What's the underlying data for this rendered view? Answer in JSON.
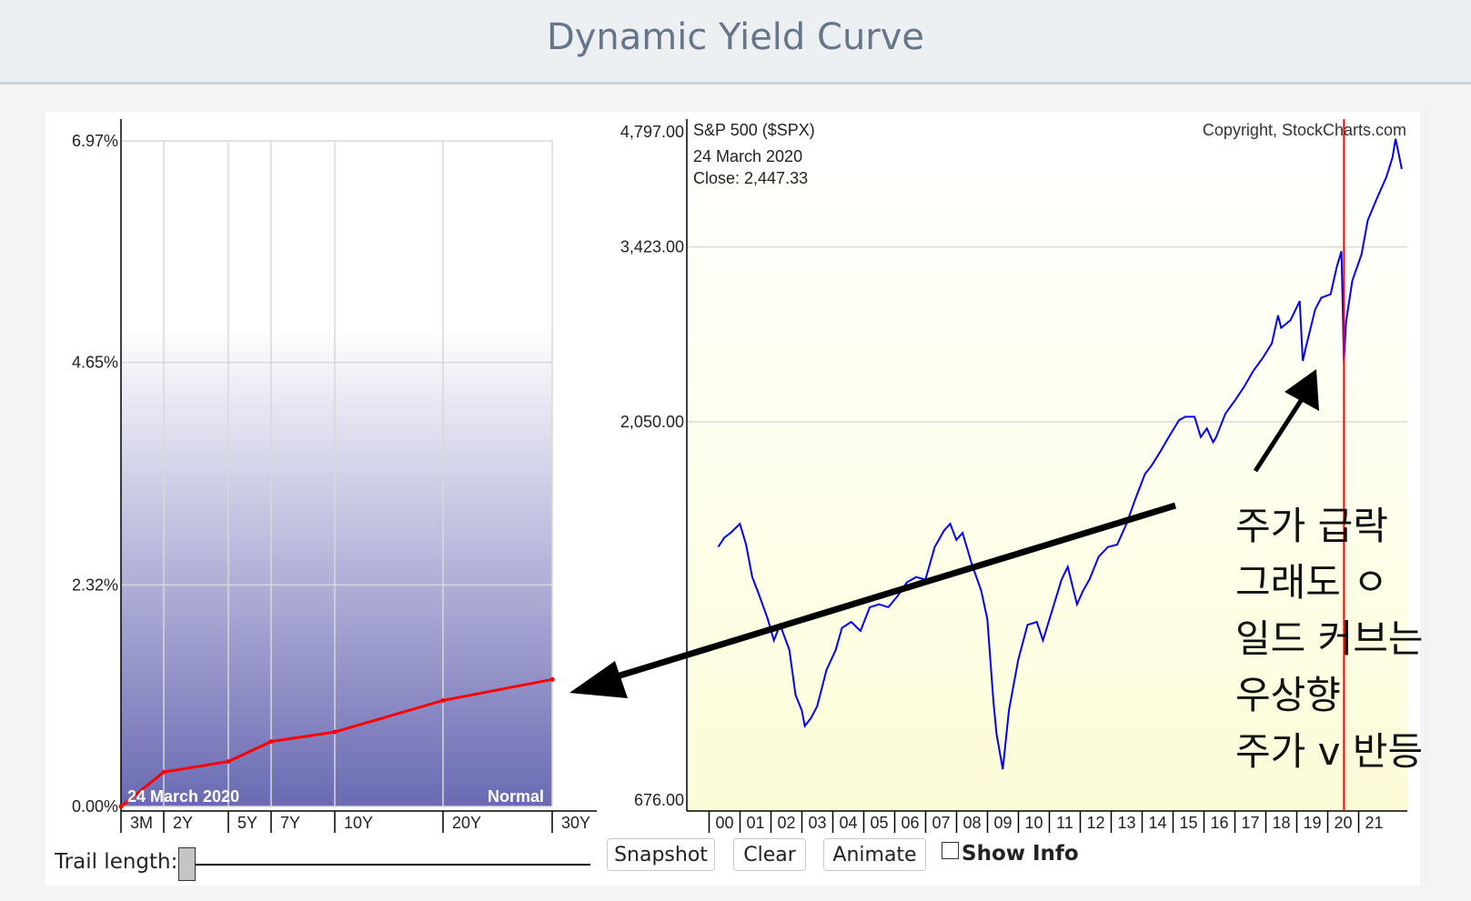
{
  "header": {
    "title": "Dynamic Yield Curve"
  },
  "yield_chart": {
    "y_ticks": [
      "6.97%",
      "4.65%",
      "2.32%",
      "0.00%"
    ],
    "date_label": "24  March 2020",
    "status_label": "Normal"
  },
  "sp500_chart": {
    "title": "S&P 500 ($SPX)",
    "copyright": "Copyright, StockCharts.com",
    "date_label": "24  March 2020",
    "close_label": "Close: 2,447.33",
    "y_ticks": [
      "4,797.00",
      "3,423.00",
      "2,050.00",
      "676.00"
    ]
  },
  "controls": {
    "trail_label": "Trail length:",
    "trail_value": 0,
    "snapshot": "Snapshot",
    "clear": "Clear",
    "animate": "Animate",
    "show_info": "Show Info",
    "show_info_checked": false
  },
  "annotation": {
    "lines": [
      "주가 급락",
      "그래도 ㅇ",
      "일드 커브는",
      "우상향",
      "주가 v 반등"
    ]
  },
  "chart_data": [
    {
      "type": "line",
      "title": "",
      "series": [
        {
          "name": "",
          "color": "#ff0000"
        }
      ],
      "x": [
        "3M",
        "2Y",
        "5Y",
        "7Y",
        "10Y",
        "20Y",
        "30Y"
      ],
      "values": [
        0.0,
        0.36,
        0.47,
        0.68,
        0.78,
        1.11,
        1.33
      ],
      "ylim": [
        0.0,
        6.97
      ],
      "ytick_values": [
        6.97,
        4.65,
        2.32,
        0.0
      ],
      "ylabel": "",
      "xlabel": "",
      "grid": true
    },
    {
      "type": "line",
      "title": "S&P 500 ($SPX)",
      "ylim": [
        676,
        4797
      ],
      "ytick_values": [
        4797,
        3423,
        2050,
        676
      ],
      "x_ticks": [
        "00",
        "01",
        "02",
        "03",
        "04",
        "05",
        "06",
        "07",
        "08",
        "09",
        "10",
        "11",
        "12",
        "13",
        "14",
        "15",
        "16",
        "17",
        "18",
        "19",
        "20",
        "21"
      ],
      "marker_date": "2020-03-24",
      "series": [
        {
          "name": "S&P 500 ($SPX)",
          "color": "#0000ff",
          "x": [
            2000.0,
            2000.2,
            2000.4,
            2000.7,
            2000.9,
            2001.1,
            2001.3,
            2001.6,
            2001.8,
            2002.0,
            2002.3,
            2002.5,
            2002.7,
            2002.8,
            2003.0,
            2003.2,
            2003.5,
            2003.8,
            2004.0,
            2004.3,
            2004.6,
            2004.9,
            2005.2,
            2005.5,
            2005.8,
            2006.1,
            2006.4,
            2006.7,
            2007.0,
            2007.3,
            2007.5,
            2007.7,
            2007.9,
            2008.2,
            2008.5,
            2008.7,
            2008.9,
            2009.0,
            2009.2,
            2009.4,
            2009.7,
            2010.0,
            2010.3,
            2010.5,
            2010.8,
            2011.1,
            2011.3,
            2011.6,
            2011.8,
            2012.0,
            2012.3,
            2012.6,
            2012.9,
            2013.2,
            2013.5,
            2013.8,
            2014.0,
            2014.3,
            2014.6,
            2014.9,
            2015.1,
            2015.4,
            2015.6,
            2015.8,
            2016.0,
            2016.1,
            2016.4,
            2016.7,
            2017.0,
            2017.3,
            2017.6,
            2017.9,
            2018.1,
            2018.2,
            2018.5,
            2018.8,
            2018.9,
            2019.0,
            2019.3,
            2019.5,
            2019.8,
            2020.0,
            2020.15,
            2020.23,
            2020.3,
            2020.5,
            2020.8,
            2021.0,
            2021.3,
            2021.6,
            2021.8,
            2021.9,
            2022.0,
            2022.1
          ],
          "values": [
            1420,
            1460,
            1480,
            1520,
            1430,
            1300,
            1240,
            1150,
            1080,
            1130,
            1050,
            920,
            880,
            840,
            860,
            890,
            990,
            1050,
            1120,
            1140,
            1110,
            1190,
            1200,
            1190,
            1230,
            1280,
            1300,
            1290,
            1420,
            1490,
            1520,
            1450,
            1480,
            1350,
            1250,
            1150,
            900,
            820,
            740,
            880,
            1020,
            1130,
            1140,
            1080,
            1180,
            1290,
            1340,
            1200,
            1250,
            1290,
            1380,
            1420,
            1430,
            1520,
            1640,
            1760,
            1800,
            1880,
            1970,
            2060,
            2080,
            2080,
            1960,
            2010,
            1930,
            1960,
            2100,
            2180,
            2270,
            2380,
            2470,
            2580,
            2800,
            2700,
            2760,
            2920,
            2450,
            2550,
            2850,
            2950,
            2980,
            3230,
            3380,
            2447,
            2750,
            3100,
            3350,
            3700,
            3950,
            4200,
            4450,
            4700,
            4500,
            4300
          ]
        }
      ]
    }
  ]
}
